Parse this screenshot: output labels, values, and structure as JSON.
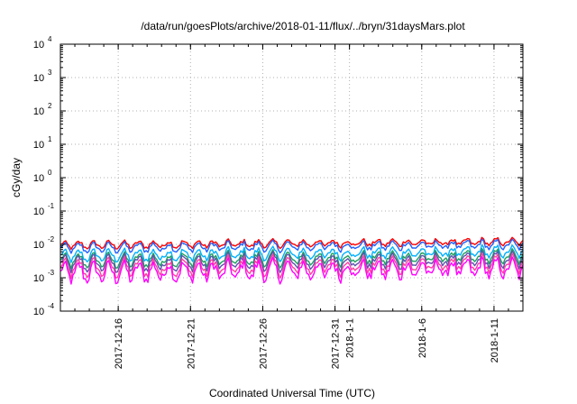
{
  "chart_data": {
    "type": "line",
    "title": "/data/run/goesPlots/archive/2018-01-11/flux/../bryn/31daysMars.plot",
    "xlabel": "Coordinated Universal Time (UTC)",
    "ylabel": "cGy/day",
    "y_scale": "log",
    "ylim": [
      0.0001,
      10000
    ],
    "y_ticks": [
      {
        "base": "10",
        "exp": "-4",
        "value": 0.0001
      },
      {
        "base": "10",
        "exp": "-3",
        "value": 0.001
      },
      {
        "base": "10",
        "exp": "-2",
        "value": 0.01
      },
      {
        "base": "10",
        "exp": "-1",
        "value": 0.1
      },
      {
        "base": "10",
        "exp": "0",
        "value": 1
      },
      {
        "base": "10",
        "exp": "1",
        "value": 10
      },
      {
        "base": "10",
        "exp": "2",
        "value": 100
      },
      {
        "base": "10",
        "exp": "3",
        "value": 1000
      },
      {
        "base": "10",
        "exp": "4",
        "value": 10000
      }
    ],
    "xlim": [
      "2017-12-12",
      "2018-01-13"
    ],
    "x_ticks": [
      "2017-12-16",
      "2017-12-21",
      "2017-12-26",
      "2017-12-31",
      "2018-1-1",
      "2018-1-6",
      "2018-1-11"
    ],
    "grid": true,
    "series": [
      {
        "color": "#ff0000",
        "level_start": 0.0095,
        "level_end": 0.012
      },
      {
        "color": "#2060ff",
        "level_start": 0.0078,
        "level_end": 0.0098
      },
      {
        "color": "#00b0ff",
        "level_start": 0.0045,
        "level_end": 0.006
      },
      {
        "color": "#20a060",
        "level_start": 0.0032,
        "level_end": 0.0043
      },
      {
        "color": "#6050b0",
        "level_start": 0.0026,
        "level_end": 0.0034
      },
      {
        "color": "#ff40a0",
        "level_start": 0.0019,
        "level_end": 0.0026
      },
      {
        "color": "#ff00ff",
        "level_start": 0.0014,
        "level_end": 0.0019
      }
    ]
  }
}
